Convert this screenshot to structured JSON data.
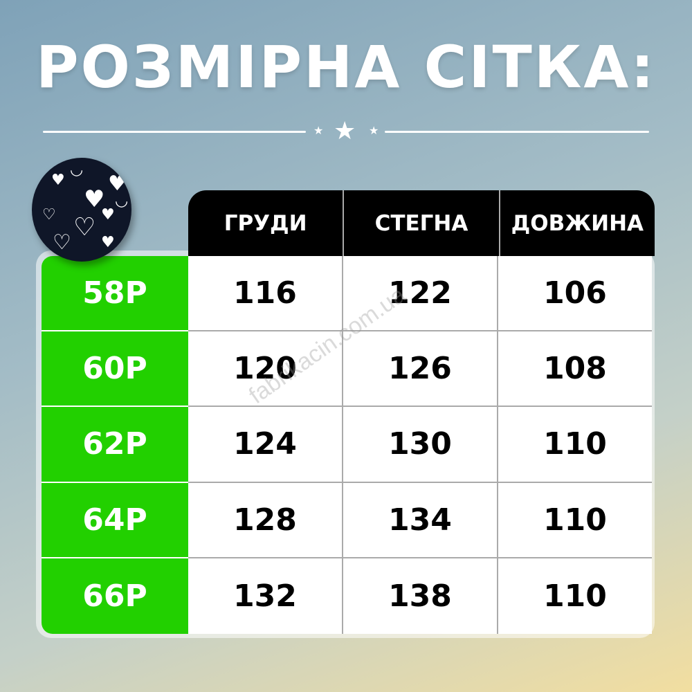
{
  "title": "РОЗМІРНА СІТКА:",
  "table": {
    "headers": [
      "ГРУДИ",
      "СТЕГНА",
      "ДОВЖИНА"
    ],
    "rows": [
      {
        "size": "58Р",
        "values": [
          "116",
          "122",
          "106"
        ]
      },
      {
        "size": "60Р",
        "values": [
          "120",
          "126",
          "108"
        ]
      },
      {
        "size": "62Р",
        "values": [
          "124",
          "130",
          "110"
        ]
      },
      {
        "size": "64Р",
        "values": [
          "128",
          "134",
          "110"
        ]
      },
      {
        "size": "66Р",
        "values": [
          "132",
          "138",
          "110"
        ]
      }
    ]
  },
  "watermark": "fabrikacin.com.ua",
  "colors": {
    "size_column": "#22d000",
    "header": "#000000"
  }
}
